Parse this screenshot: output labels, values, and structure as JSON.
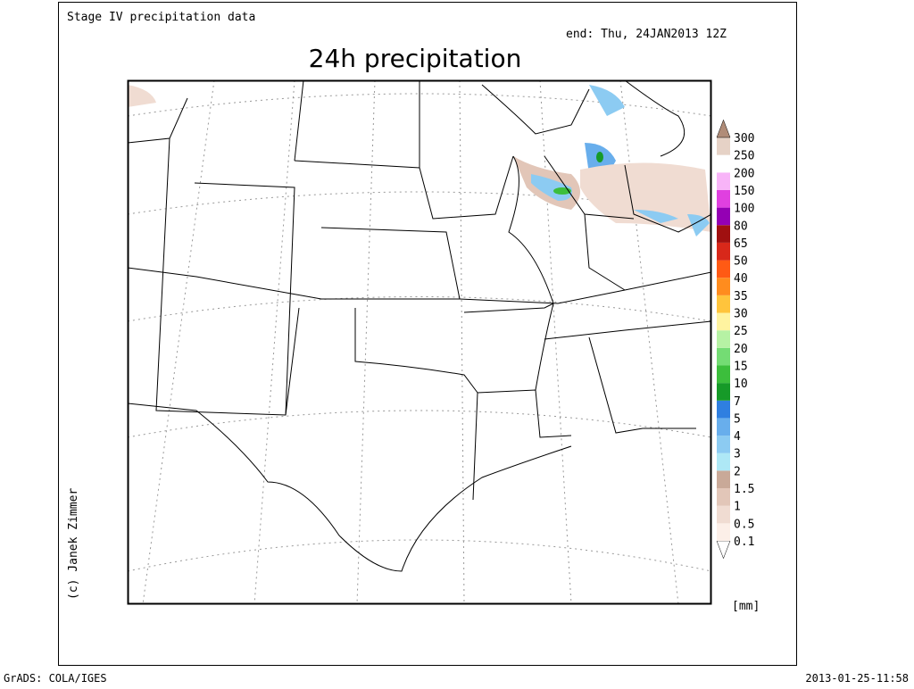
{
  "header": {
    "title": "Stage IV precipitation data",
    "end": "end: Thu, 24JAN2013 12Z"
  },
  "map": {
    "title": "24h precipitation",
    "legend": {
      "levels": [
        0.1,
        0.5,
        1,
        1.5,
        2,
        3,
        4,
        5,
        7,
        10,
        15,
        20,
        25,
        30,
        35,
        40,
        50,
        65,
        80,
        100,
        150,
        200,
        250,
        300
      ],
      "colors": [
        "#ffffff",
        "#fcefe8",
        "#f0dcd2",
        "#e2c6b8",
        "#c9a998",
        "#aee8f6",
        "#8ccbf2",
        "#68aeec",
        "#2f7fe0",
        "#169a28",
        "#3cbe3c",
        "#74dc74",
        "#b6f2a4",
        "#fff3a0",
        "#ffc43c",
        "#ff8c1e",
        "#ff5a14",
        "#d8281a",
        "#a01010",
        "#9400b4",
        "#e040e0",
        "#f8b4f8",
        "#ffffff",
        "#e6d2c6",
        "#b08c78"
      ],
      "unit": "[mm]"
    }
  },
  "credit": "(c) Janek Zimmer",
  "footer": {
    "left": "GrADS: COLA/IGES",
    "right": "2013-01-25-11:58"
  }
}
